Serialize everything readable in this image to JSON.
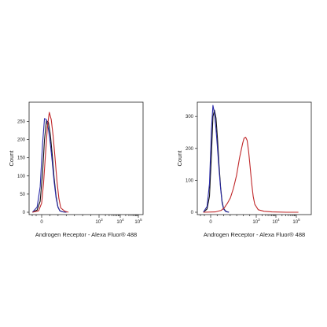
{
  "colors": {
    "black": "#111111",
    "blue": "#2a2aa8",
    "red": "#c0282a"
  },
  "chart_data": [
    {
      "type": "line",
      "xlabel": "Androgen Receptor - Alexa Fluor® 488",
      "ylabel": "Count",
      "ylim": [
        0,
        290
      ],
      "yticks": [
        0,
        50,
        100,
        150,
        200,
        250
      ],
      "xticks": [
        {
          "label": "0",
          "exp": ""
        },
        {
          "label": "10",
          "exp": "3"
        },
        {
          "label": "10",
          "exp": "4"
        },
        {
          "label": "10",
          "exp": "5"
        }
      ],
      "xscale": "biexponential",
      "xlim": [
        -0.3,
        5.1
      ],
      "grid": false,
      "series": [
        {
          "color": "black",
          "x": [
            -0.3,
            -0.15,
            -0.05,
            0.05,
            0.15,
            0.25,
            0.35,
            0.45,
            0.55,
            0.65,
            0.75,
            0.85,
            0.95,
            1.1,
            1.3
          ],
          "y": [
            0,
            6,
            30,
            110,
            200,
            252,
            248,
            215,
            160,
            95,
            45,
            15,
            4,
            1,
            0
          ]
        },
        {
          "color": "blue",
          "x": [
            -0.3,
            -0.15,
            -0.05,
            0.05,
            0.15,
            0.25,
            0.35,
            0.45,
            0.55,
            0.65,
            0.75,
            0.85,
            0.95,
            1.1,
            1.3
          ],
          "y": [
            0,
            14,
            70,
            190,
            258,
            255,
            230,
            190,
            140,
            85,
            40,
            14,
            4,
            1,
            0
          ]
        },
        {
          "color": "red",
          "x": [
            -0.3,
            -0.1,
            0.0,
            0.1,
            0.2,
            0.3,
            0.4,
            0.5,
            0.6,
            0.7,
            0.8,
            0.9,
            1.0,
            1.2,
            1.4
          ],
          "y": [
            0,
            4,
            25,
            80,
            160,
            235,
            275,
            255,
            210,
            150,
            85,
            38,
            12,
            3,
            0
          ]
        }
      ]
    },
    {
      "type": "line",
      "xlabel": "Androgen Receptor - Alexa Fluor® 488",
      "ylabel": "Count",
      "ylim": [
        0,
        330
      ],
      "yticks": [
        0,
        100,
        200,
        300
      ],
      "xticks": [
        {
          "label": "0",
          "exp": ""
        },
        {
          "label": "10",
          "exp": "3"
        },
        {
          "label": "10",
          "exp": "4"
        },
        {
          "label": "10",
          "exp": "5"
        }
      ],
      "xscale": "biexponential",
      "xlim": [
        -0.3,
        5.1
      ],
      "grid": false,
      "series": [
        {
          "color": "black",
          "x": [
            -0.3,
            -0.15,
            -0.05,
            0.05,
            0.15,
            0.25,
            0.35,
            0.45,
            0.55,
            0.65,
            0.75,
            0.85,
            1.0,
            1.2
          ],
          "y": [
            0,
            10,
            50,
            180,
            300,
            320,
            295,
            230,
            150,
            80,
            35,
            12,
            3,
            0
          ]
        },
        {
          "color": "blue",
          "x": [
            -0.3,
            -0.15,
            -0.05,
            0.05,
            0.15,
            0.25,
            0.35,
            0.45,
            0.55,
            0.65,
            0.75,
            0.85,
            1.0,
            1.2
          ],
          "y": [
            0,
            18,
            90,
            260,
            335,
            310,
            260,
            200,
            135,
            75,
            30,
            10,
            2,
            0
          ]
        },
        {
          "color": "red",
          "x": [
            -0.3,
            0.3,
            0.7,
            0.9,
            1.1,
            1.3,
            1.5,
            1.7,
            1.9,
            2.1,
            2.2,
            2.3,
            2.4,
            2.5,
            2.6,
            2.7,
            2.8,
            2.9,
            3.1,
            3.4,
            3.8,
            4.5,
            5.1
          ],
          "y": [
            0,
            1,
            6,
            14,
            28,
            45,
            75,
            115,
            170,
            215,
            232,
            235,
            225,
            190,
            140,
            90,
            50,
            25,
            8,
            3,
            1,
            0,
            0
          ]
        }
      ]
    }
  ]
}
